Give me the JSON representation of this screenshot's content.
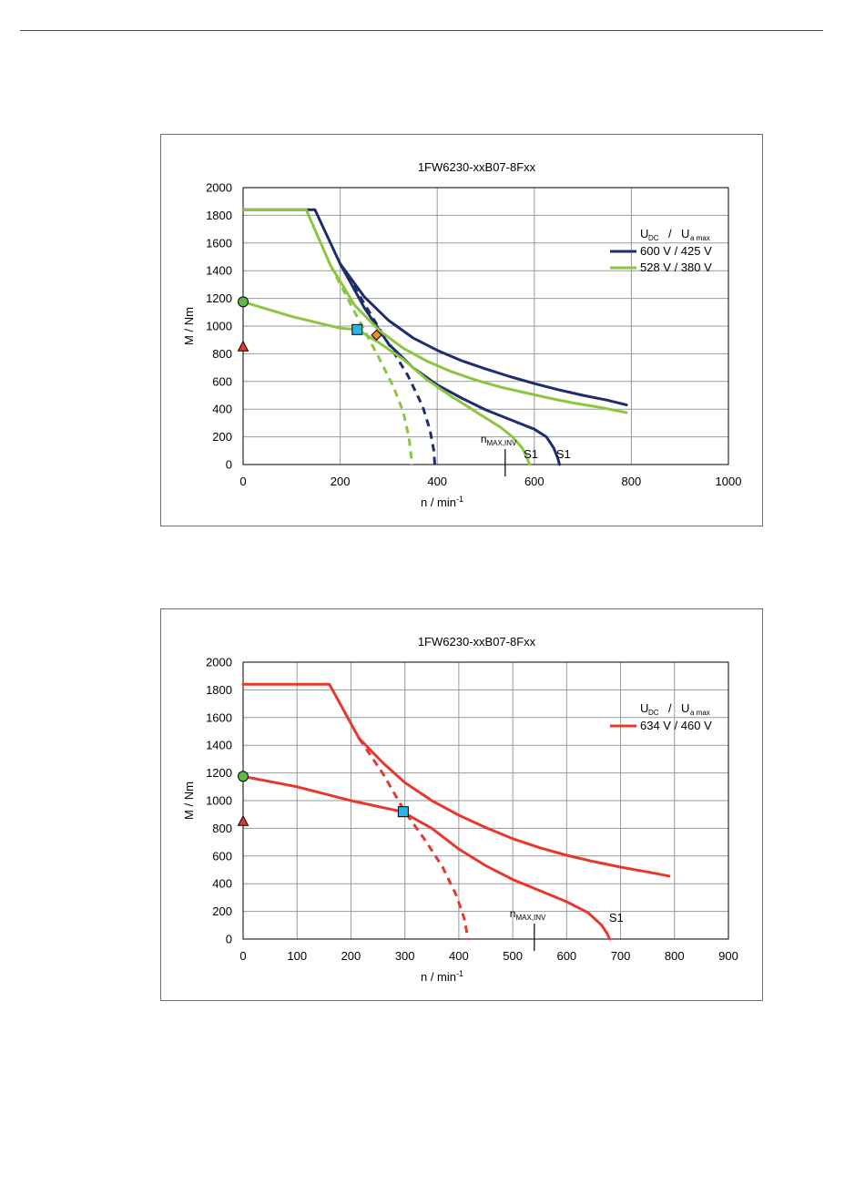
{
  "chart_data": [
    {
      "type": "line",
      "title": "1FW6230-xxB07-8Fxx",
      "xlabel": "n / min",
      "xlabel_sup": "-1",
      "ylabel": "M / Nm",
      "xlim": [
        0,
        1000
      ],
      "ylim": [
        0,
        2000
      ],
      "xticks": [
        0,
        200,
        400,
        600,
        800,
        1000
      ],
      "yticks": [
        0,
        200,
        400,
        600,
        800,
        1000,
        1200,
        1400,
        1600,
        1800,
        2000
      ],
      "grid": true,
      "legend_position": "top-right",
      "legend_header": {
        "a": "U",
        "a_sub": "DC",
        "sep": "/",
        "b": "U",
        "b_sub": "a max"
      },
      "series": [
        {
          "name": "600 V / 425 V",
          "color": "#1f2d6e",
          "curves": [
            {
              "style": "solid",
              "points": [
                [
                  0,
                  1840
                ],
                [
                  148,
                  1840
                ],
                [
                  200,
                  1450
                ],
                [
                  250,
                  1210
                ],
                [
                  300,
                  1040
                ],
                [
                  350,
                  915
                ],
                [
                  400,
                  825
                ],
                [
                  450,
                  750
                ],
                [
                  500,
                  690
                ],
                [
                  550,
                  635
                ],
                [
                  600,
                  585
                ],
                [
                  650,
                  540
                ],
                [
                  700,
                  500
                ],
                [
                  750,
                  465
                ],
                [
                  790,
                  430
                ]
              ]
            },
            {
              "style": "solid",
              "points": [
                [
                  200,
                  1450
                ],
                [
                  250,
                  1130
                ],
                [
                  300,
                  870
                ],
                [
                  350,
                  700
                ],
                [
                  400,
                  575
                ],
                [
                  450,
                  480
                ],
                [
                  500,
                  395
                ],
                [
                  550,
                  325
                ],
                [
                  600,
                  255
                ],
                [
                  625,
                  200
                ],
                [
                  640,
                  120
                ],
                [
                  648,
                  50
                ],
                [
                  652,
                  0
                ]
              ]
            },
            {
              "style": "dashed",
              "points": [
                [
                  200,
                  1450
                ],
                [
                  250,
                  1160
                ],
                [
                  300,
                  870
                ],
                [
                  340,
                  640
                ],
                [
                  370,
                  420
                ],
                [
                  385,
                  250
                ],
                [
                  393,
                  100
                ],
                [
                  395,
                  0
                ]
              ]
            }
          ]
        },
        {
          "name": "528 V / 380 V",
          "color": "#8cc63f",
          "curves": [
            {
              "style": "solid",
              "points": [
                [
                  0,
                  1840
                ],
                [
                  130,
                  1840
                ],
                [
                  180,
                  1440
                ],
                [
                  230,
                  1150
                ],
                [
                  280,
                  970
                ],
                [
                  330,
                  840
                ],
                [
                  380,
                  745
                ],
                [
                  430,
                  670
                ],
                [
                  480,
                  610
                ],
                [
                  530,
                  560
                ],
                [
                  580,
                  520
                ],
                [
                  630,
                  480
                ],
                [
                  680,
                  445
                ],
                [
                  740,
                  410
                ],
                [
                  790,
                  375
                ]
              ]
            },
            {
              "style": "solid",
              "points": [
                [
                  0,
                  1175
                ],
                [
                  100,
                  1070
                ],
                [
                  200,
                  985
                ],
                [
                  235,
                  975
                ],
                [
                  280,
                  880
                ],
                [
                  330,
                  760
                ],
                [
                  380,
                  610
                ],
                [
                  430,
                  490
                ],
                [
                  480,
                  380
                ],
                [
                  530,
                  270
                ],
                [
                  555,
                  200
                ],
                [
                  575,
                  120
                ],
                [
                  585,
                  50
                ],
                [
                  590,
                  0
                ]
              ]
            },
            {
              "style": "dashed",
              "points": [
                [
                  180,
                  1440
                ],
                [
                  230,
                  1100
                ],
                [
                  280,
                  770
                ],
                [
                  310,
                  560
                ],
                [
                  330,
                  380
                ],
                [
                  342,
                  190
                ],
                [
                  348,
                  0
                ]
              ]
            }
          ]
        }
      ],
      "markers": [
        {
          "shape": "circle",
          "x": 0,
          "y": 1175,
          "color": "#5fb846"
        },
        {
          "shape": "triangle",
          "x": 0,
          "y": 850,
          "color": "#e03a2e"
        },
        {
          "shape": "square",
          "x": 235,
          "y": 975,
          "color": "#29b6e6"
        },
        {
          "shape": "diamond",
          "x": 275,
          "y": 935,
          "color": "#f28c28"
        }
      ],
      "annotations": [
        {
          "text": "S1",
          "x": 593,
          "y": 45
        },
        {
          "text": "S1",
          "x": 660,
          "y": 45
        }
      ],
      "n_max": {
        "x": 540,
        "label": "n",
        "label_sub": "MAX,INV"
      }
    },
    {
      "type": "line",
      "title": "1FW6230-xxB07-8Fxx",
      "xlabel": "n / min",
      "xlabel_sup": "-1",
      "ylabel": "M / Nm",
      "xlim": [
        0,
        900
      ],
      "ylim": [
        0,
        2000
      ],
      "xticks": [
        0,
        100,
        200,
        300,
        400,
        500,
        600,
        700,
        800,
        900
      ],
      "yticks": [
        0,
        200,
        400,
        600,
        800,
        1000,
        1200,
        1400,
        1600,
        1800,
        2000
      ],
      "grid": true,
      "legend_position": "top-right",
      "legend_header": {
        "a": "U",
        "a_sub": "DC",
        "sep": "/",
        "b": "U",
        "b_sub": "a max"
      },
      "series": [
        {
          "name": "634 V / 460 V",
          "color": "#e8382e",
          "curves": [
            {
              "style": "solid",
              "points": [
                [
                  0,
                  1840
                ],
                [
                  160,
                  1840
                ],
                [
                  215,
                  1450
                ],
                [
                  260,
                  1270
                ],
                [
                  300,
                  1130
                ],
                [
                  350,
                  1000
                ],
                [
                  400,
                  895
                ],
                [
                  450,
                  805
                ],
                [
                  500,
                  725
                ],
                [
                  550,
                  660
                ],
                [
                  600,
                  605
                ],
                [
                  650,
                  560
                ],
                [
                  700,
                  520
                ],
                [
                  750,
                  485
                ],
                [
                  790,
                  455
                ]
              ]
            },
            {
              "style": "solid",
              "points": [
                [
                  0,
                  1175
                ],
                [
                  100,
                  1100
                ],
                [
                  200,
                  1000
                ],
                [
                  295,
                  920
                ],
                [
                  350,
                  800
                ],
                [
                  400,
                  650
                ],
                [
                  450,
                  530
                ],
                [
                  500,
                  430
                ],
                [
                  550,
                  350
                ],
                [
                  600,
                  270
                ],
                [
                  640,
                  190
                ],
                [
                  665,
                  100
                ],
                [
                  675,
                  40
                ],
                [
                  680,
                  0
                ]
              ]
            },
            {
              "style": "dashed",
              "points": [
                [
                  215,
                  1450
                ],
                [
                  260,
                  1190
                ],
                [
                  300,
                  920
                ],
                [
                  340,
                  700
                ],
                [
                  370,
                  520
                ],
                [
                  395,
                  320
                ],
                [
                  410,
                  150
                ],
                [
                  417,
                  0
                ]
              ]
            }
          ]
        }
      ],
      "markers": [
        {
          "shape": "circle",
          "x": 0,
          "y": 1175,
          "color": "#5fb846"
        },
        {
          "shape": "triangle",
          "x": 0,
          "y": 850,
          "color": "#e03a2e"
        },
        {
          "shape": "square",
          "x": 297,
          "y": 920,
          "color": "#29b6e6"
        }
      ],
      "annotations": [
        {
          "text": "S1",
          "x": 692,
          "y": 125
        }
      ],
      "n_max": {
        "x": 540,
        "label": "n",
        "label_sub": "MAX,INV"
      }
    }
  ]
}
